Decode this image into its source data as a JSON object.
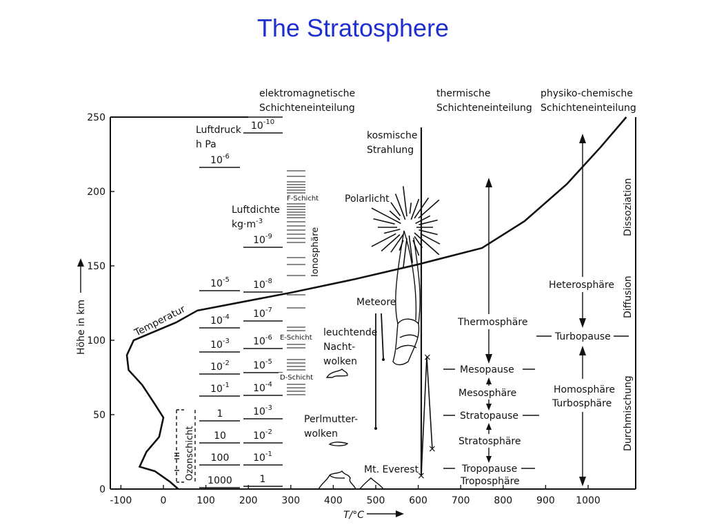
{
  "title": "The Stratosphere",
  "column_headers": {
    "em": [
      "elektromagnetische",
      "Schichteneinteilung"
    ],
    "thermal": [
      "thermische",
      "Schichteneinteilung"
    ],
    "physchem": [
      "physiko-chemische",
      "Schichteneinteilung"
    ]
  },
  "axes": {
    "y_label": "Höhe in km",
    "y_ticks": [
      "0",
      "50",
      "100",
      "150",
      "200",
      "250"
    ],
    "x_label": "T/°C",
    "x_ticks": [
      "-100",
      "0",
      "100",
      "200",
      "300",
      "400",
      "500",
      "600",
      "700",
      "800",
      "900",
      "1000"
    ]
  },
  "pressure": {
    "title": [
      "Luftdruck",
      "h Pa"
    ],
    "levels": [
      {
        "base": "1000",
        "exp": ""
      },
      {
        "base": "100",
        "exp": ""
      },
      {
        "base": "10",
        "exp": ""
      },
      {
        "base": "1",
        "exp": ""
      },
      {
        "base": "10",
        "exp": "-1"
      },
      {
        "base": "10",
        "exp": "-2"
      },
      {
        "base": "10",
        "exp": "-3"
      },
      {
        "base": "10",
        "exp": "-4"
      },
      {
        "base": "10",
        "exp": "-5"
      },
      {
        "base": "10",
        "exp": "-6"
      }
    ]
  },
  "density": {
    "title": [
      "Luftdichte",
      "kg·m"
    ],
    "title_exp": "-3",
    "levels": [
      {
        "base": "1",
        "exp": ""
      },
      {
        "base": "10",
        "exp": "-1"
      },
      {
        "base": "10",
        "exp": "-2"
      },
      {
        "base": "10",
        "exp": "-3"
      },
      {
        "base": "10",
        "exp": "-4"
      },
      {
        "base": "10",
        "exp": "-5"
      },
      {
        "base": "10",
        "exp": "-6"
      },
      {
        "base": "10",
        "exp": "-7"
      },
      {
        "base": "10",
        "exp": "-8"
      },
      {
        "base": "10",
        "exp": "-9"
      },
      {
        "base": "10",
        "exp": "-10"
      }
    ]
  },
  "ionosphere": {
    "label": "Ionosphäre",
    "layers": [
      "F-Schicht",
      "E-Schicht",
      "D-Schicht"
    ]
  },
  "ozone_label": "Ozonschicht",
  "temperature_label": "Temperatur",
  "phenomena": {
    "cosmic": [
      "kosmische",
      "Strahlung"
    ],
    "aurora": "Polarlicht",
    "meteors": "Meteore",
    "noctilucent": [
      "leuchtende",
      "Nacht-",
      "wolken"
    ],
    "nacreous": [
      "Perlmutter-",
      "wolken"
    ],
    "everest": "Mt. Everest"
  },
  "thermal_layers": [
    "Thermosphäre",
    "Mesopause",
    "Mesosphäre",
    "Stratopause",
    "Stratosphäre",
    "Tropopause",
    "Troposphäre"
  ],
  "physchem_layers": [
    "Heterosphäre",
    "Turbopause",
    "Homosphäre",
    "Turbosphäre"
  ],
  "physchem_processes": [
    "Dissoziation",
    "Diffusion",
    "Durchmischung"
  ],
  "colors": {
    "title": "#1f2fd0",
    "ink": "#111111"
  }
}
